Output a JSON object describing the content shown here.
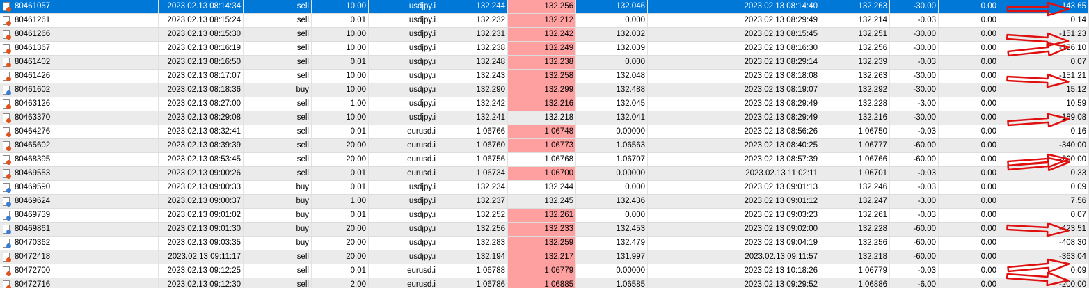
{
  "table": {
    "selected_row": 0,
    "selected_color": "#0078d7",
    "highlight_color": "#ffa0a0",
    "highlighted_column": 6,
    "icon_colors": {
      "sell": "#e0541b",
      "buy": "#3a7bd5"
    },
    "highlighted_rows": [
      0,
      1,
      2,
      3,
      4,
      5,
      6,
      7,
      9,
      10,
      12,
      15,
      16,
      17,
      18,
      19,
      20
    ],
    "rows": [
      [
        "80461057",
        "2023.02.13 08:14:34",
        "sell",
        "10.00",
        "usdjpy.i",
        "132.244",
        "132.256",
        "132.046",
        "2023.02.13 08:14:40",
        "132.263",
        "-30.00",
        "0.00",
        "-143.65"
      ],
      [
        "80461261",
        "2023.02.13 08:15:24",
        "sell",
        "0.01",
        "usdjpy.i",
        "132.232",
        "132.212",
        "0.000",
        "2023.02.13 08:29:49",
        "132.214",
        "-0.03",
        "0.00",
        "0.14"
      ],
      [
        "80461266",
        "2023.02.13 08:15:30",
        "sell",
        "10.00",
        "usdjpy.i",
        "132.231",
        "132.242",
        "132.032",
        "2023.02.13 08:15:45",
        "132.251",
        "-30.00",
        "0.00",
        "-151.23"
      ],
      [
        "80461367",
        "2023.02.13 08:16:19",
        "sell",
        "10.00",
        "usdjpy.i",
        "132.238",
        "132.249",
        "132.039",
        "2023.02.13 08:16:30",
        "132.256",
        "-30.00",
        "0.00",
        "-136.10"
      ],
      [
        "80461402",
        "2023.02.13 08:16:50",
        "sell",
        "0.01",
        "usdjpy.i",
        "132.248",
        "132.238",
        "0.000",
        "2023.02.13 08:29:14",
        "132.239",
        "-0.03",
        "0.00",
        "0.07"
      ],
      [
        "80461426",
        "2023.02.13 08:17:07",
        "sell",
        "10.00",
        "usdjpy.i",
        "132.243",
        "132.258",
        "132.048",
        "2023.02.13 08:18:08",
        "132.263",
        "-30.00",
        "0.00",
        "-151.21"
      ],
      [
        "80461602",
        "2023.02.13 08:18:36",
        "buy",
        "10.00",
        "usdjpy.i",
        "132.290",
        "132.299",
        "132.488",
        "2023.02.13 08:19:07",
        "132.292",
        "-30.00",
        "0.00",
        "15.12"
      ],
      [
        "80463126",
        "2023.02.13 08:27:00",
        "sell",
        "1.00",
        "usdjpy.i",
        "132.242",
        "132.216",
        "132.045",
        "2023.02.13 08:29:49",
        "132.228",
        "-3.00",
        "0.00",
        "10.59"
      ],
      [
        "80463370",
        "2023.02.13 08:29:08",
        "sell",
        "10.00",
        "usdjpy.i",
        "132.241",
        "132.218",
        "132.041",
        "2023.02.13 08:29:49",
        "132.216",
        "-30.00",
        "0.00",
        "189.08"
      ],
      [
        "80464276",
        "2023.02.13 08:32:41",
        "sell",
        "0.01",
        "eurusd.i",
        "1.06766",
        "1.06748",
        "0.00000",
        "2023.02.13 08:56:26",
        "1.06750",
        "-0.03",
        "0.00",
        "0.16"
      ],
      [
        "80465602",
        "2023.02.13 08:39:39",
        "sell",
        "20.00",
        "eurusd.i",
        "1.06760",
        "1.06773",
        "1.06563",
        "2023.02.13 08:40:25",
        "1.06777",
        "-60.00",
        "0.00",
        "-340.00"
      ],
      [
        "80468395",
        "2023.02.13 08:53:45",
        "sell",
        "20.00",
        "eurusd.i",
        "1.06756",
        "1.06768",
        "1.06707",
        "2023.02.13 08:57:39",
        "1.06766",
        "-60.00",
        "0.00",
        "-200.00"
      ],
      [
        "80469553",
        "2023.02.13 09:00:26",
        "sell",
        "0.01",
        "eurusd.i",
        "1.06734",
        "1.06700",
        "0.00000",
        "2023.02.13 11:02:11",
        "1.06701",
        "-0.03",
        "0.00",
        "0.33"
      ],
      [
        "80469590",
        "2023.02.13 09:00:33",
        "buy",
        "0.01",
        "usdjpy.i",
        "132.234",
        "132.244",
        "0.000",
        "2023.02.13 09:01:13",
        "132.246",
        "-0.03",
        "0.00",
        "0.09"
      ],
      [
        "80469624",
        "2023.02.13 09:00:37",
        "buy",
        "1.00",
        "usdjpy.i",
        "132.237",
        "132.245",
        "132.436",
        "2023.02.13 09:01:12",
        "132.247",
        "-3.00",
        "0.00",
        "7.56"
      ],
      [
        "80469739",
        "2023.02.13 09:01:02",
        "buy",
        "0.01",
        "usdjpy.i",
        "132.252",
        "132.261",
        "0.000",
        "2023.02.13 09:03:23",
        "132.261",
        "-0.03",
        "0.00",
        "0.07"
      ],
      [
        "80469861",
        "2023.02.13 09:01:30",
        "buy",
        "20.00",
        "usdjpy.i",
        "132.256",
        "132.233",
        "132.453",
        "2023.02.13 09:02:00",
        "132.228",
        "-60.00",
        "0.00",
        "-423.51"
      ],
      [
        "80470362",
        "2023.02.13 09:03:35",
        "buy",
        "20.00",
        "usdjpy.i",
        "132.283",
        "132.259",
        "132.479",
        "2023.02.13 09:04:19",
        "132.256",
        "-60.00",
        "0.00",
        "-408.30"
      ],
      [
        "80472418",
        "2023.02.13 09:11:17",
        "sell",
        "20.00",
        "usdjpy.i",
        "132.194",
        "132.217",
        "131.997",
        "2023.02.13 09:11:57",
        "132.218",
        "-60.00",
        "0.00",
        "-363.04"
      ],
      [
        "80472700",
        "2023.02.13 09:12:25",
        "sell",
        "0.01",
        "eurusd.i",
        "1.06788",
        "1.06779",
        "0.00000",
        "2023.02.13 10:18:26",
        "1.06779",
        "-0.03",
        "0.00",
        "0.09"
      ],
      [
        "80472716",
        "2023.02.13 09:12:30",
        "sell",
        "2.00",
        "eurusd.i",
        "1.06786",
        "1.06885",
        "1.06585",
        "2023.02.13 09:29:52",
        "1.06886",
        "-6.00",
        "0.00",
        "-200.00"
      ]
    ]
  }
}
